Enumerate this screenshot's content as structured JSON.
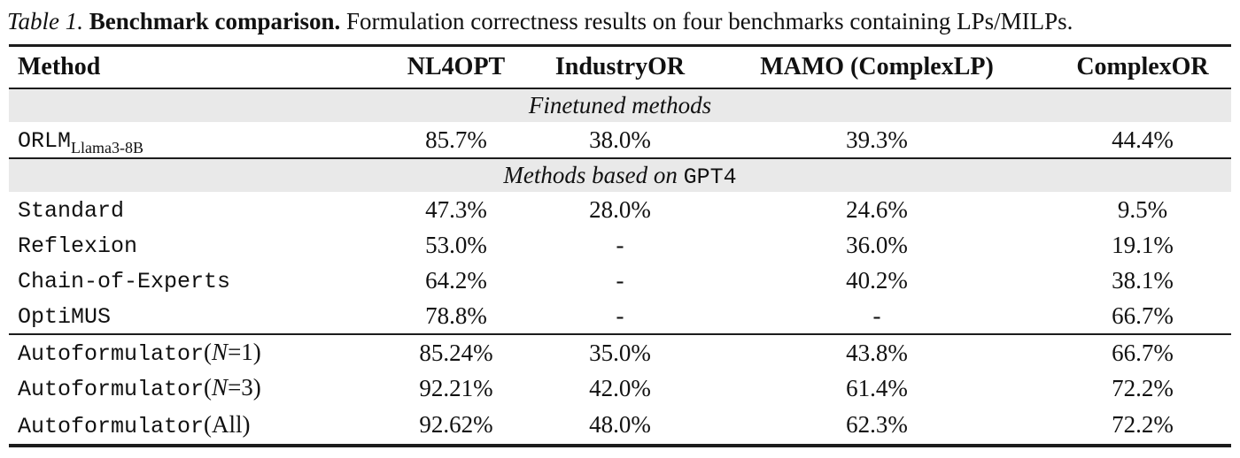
{
  "caption": {
    "label": "Table 1.",
    "title": "Benchmark comparison.",
    "text": "Formulation correctness results on four benchmarks containing LPs/MILPs."
  },
  "table": {
    "headers": {
      "method": "Method",
      "cols": [
        "NL4OPT",
        "IndustryOR",
        "MAMO (ComplexLP)",
        "ComplexOR"
      ]
    },
    "section1": {
      "italic": "Finetuned methods",
      "mono": ""
    },
    "section2": {
      "italic": "Methods based on ",
      "mono": "GPT4"
    },
    "rows": [
      {
        "method": "ORLM",
        "sub": "Llama3-8B",
        "cells": [
          "85.7%",
          "38.0%",
          "39.3%",
          "44.4%"
        ]
      },
      {
        "method": "Standard",
        "cells": [
          "47.3%",
          "28.0%",
          "24.6%",
          "9.5%"
        ]
      },
      {
        "method": "Reflexion",
        "cells": [
          "53.0%",
          "-",
          "36.0%",
          "19.1%"
        ]
      },
      {
        "method": "Chain-of-Experts",
        "cells": [
          "64.2%",
          "-",
          "40.2%",
          "38.1%"
        ]
      },
      {
        "method": "OptiMUS",
        "cells": [
          "78.8%",
          "-",
          "-",
          "66.7%"
        ]
      },
      {
        "method": "Autoformulator",
        "sx_open": "(",
        "sx_var": "N",
        "sx_rest": "=1)",
        "cells": [
          "85.24%",
          "35.0%",
          "43.8%",
          "66.7%"
        ]
      },
      {
        "method": "Autoformulator",
        "sx_open": "(",
        "sx_var": "N",
        "sx_rest": "=3)",
        "cells": [
          "92.21%",
          "42.0%",
          "61.4%",
          "72.2%"
        ]
      },
      {
        "method": "Autoformulator",
        "sx_open": "(",
        "sx_var": "",
        "sx_rest": "All)",
        "cells": [
          "92.62%",
          "48.0%",
          "62.3%",
          "72.2%"
        ]
      }
    ]
  }
}
